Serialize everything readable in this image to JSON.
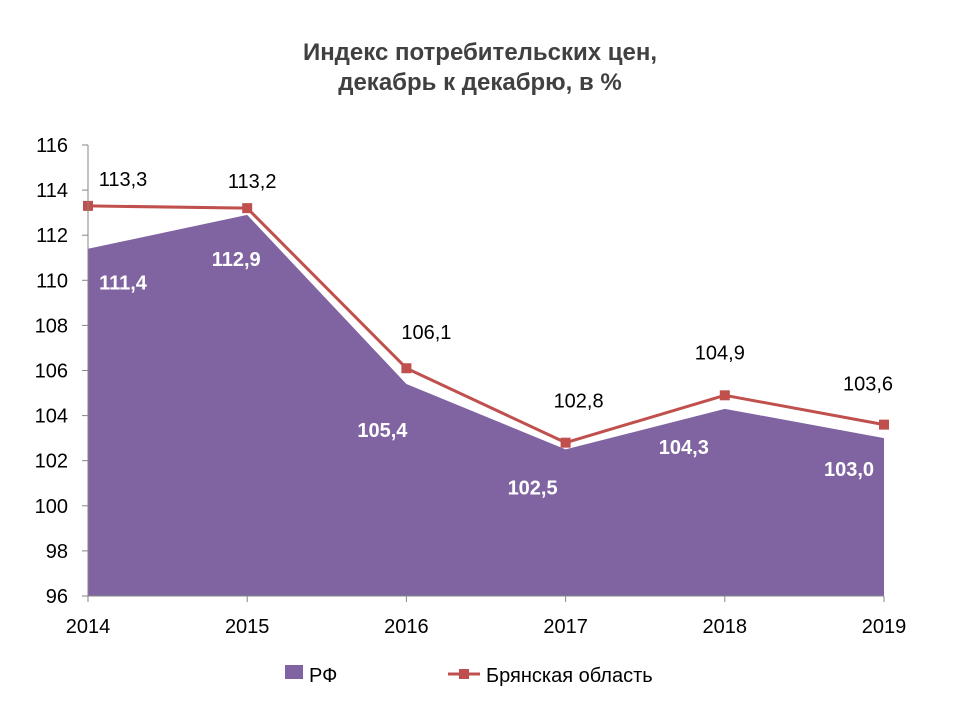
{
  "chart_data": {
    "type": "area",
    "title_lines": [
      "Индекс потребительских цен,",
      "декабрь к декабрю, в %"
    ],
    "categories": [
      "2014",
      "2015",
      "2016",
      "2017",
      "2018",
      "2019"
    ],
    "ylim": [
      96,
      116
    ],
    "yticks": [
      96,
      98,
      100,
      102,
      104,
      106,
      108,
      110,
      112,
      114,
      116
    ],
    "grid": false,
    "legend_position": "bottom",
    "series": [
      {
        "name": "РФ",
        "kind": "area",
        "color": "#8064a2",
        "values": [
          111.4,
          112.9,
          105.4,
          102.5,
          104.3,
          103.0
        ],
        "labels": [
          "111,4",
          "112,9",
          "105,4",
          "102,5",
          "104,3",
          "103,0"
        ]
      },
      {
        "name": "Брянская область",
        "kind": "line",
        "color": "#c0504d",
        "values": [
          113.3,
          113.2,
          106.1,
          102.8,
          104.9,
          103.6
        ],
        "labels": [
          "113,3",
          "113,2",
          "106,1",
          "102,8",
          "104,9",
          "103,6"
        ]
      }
    ]
  }
}
